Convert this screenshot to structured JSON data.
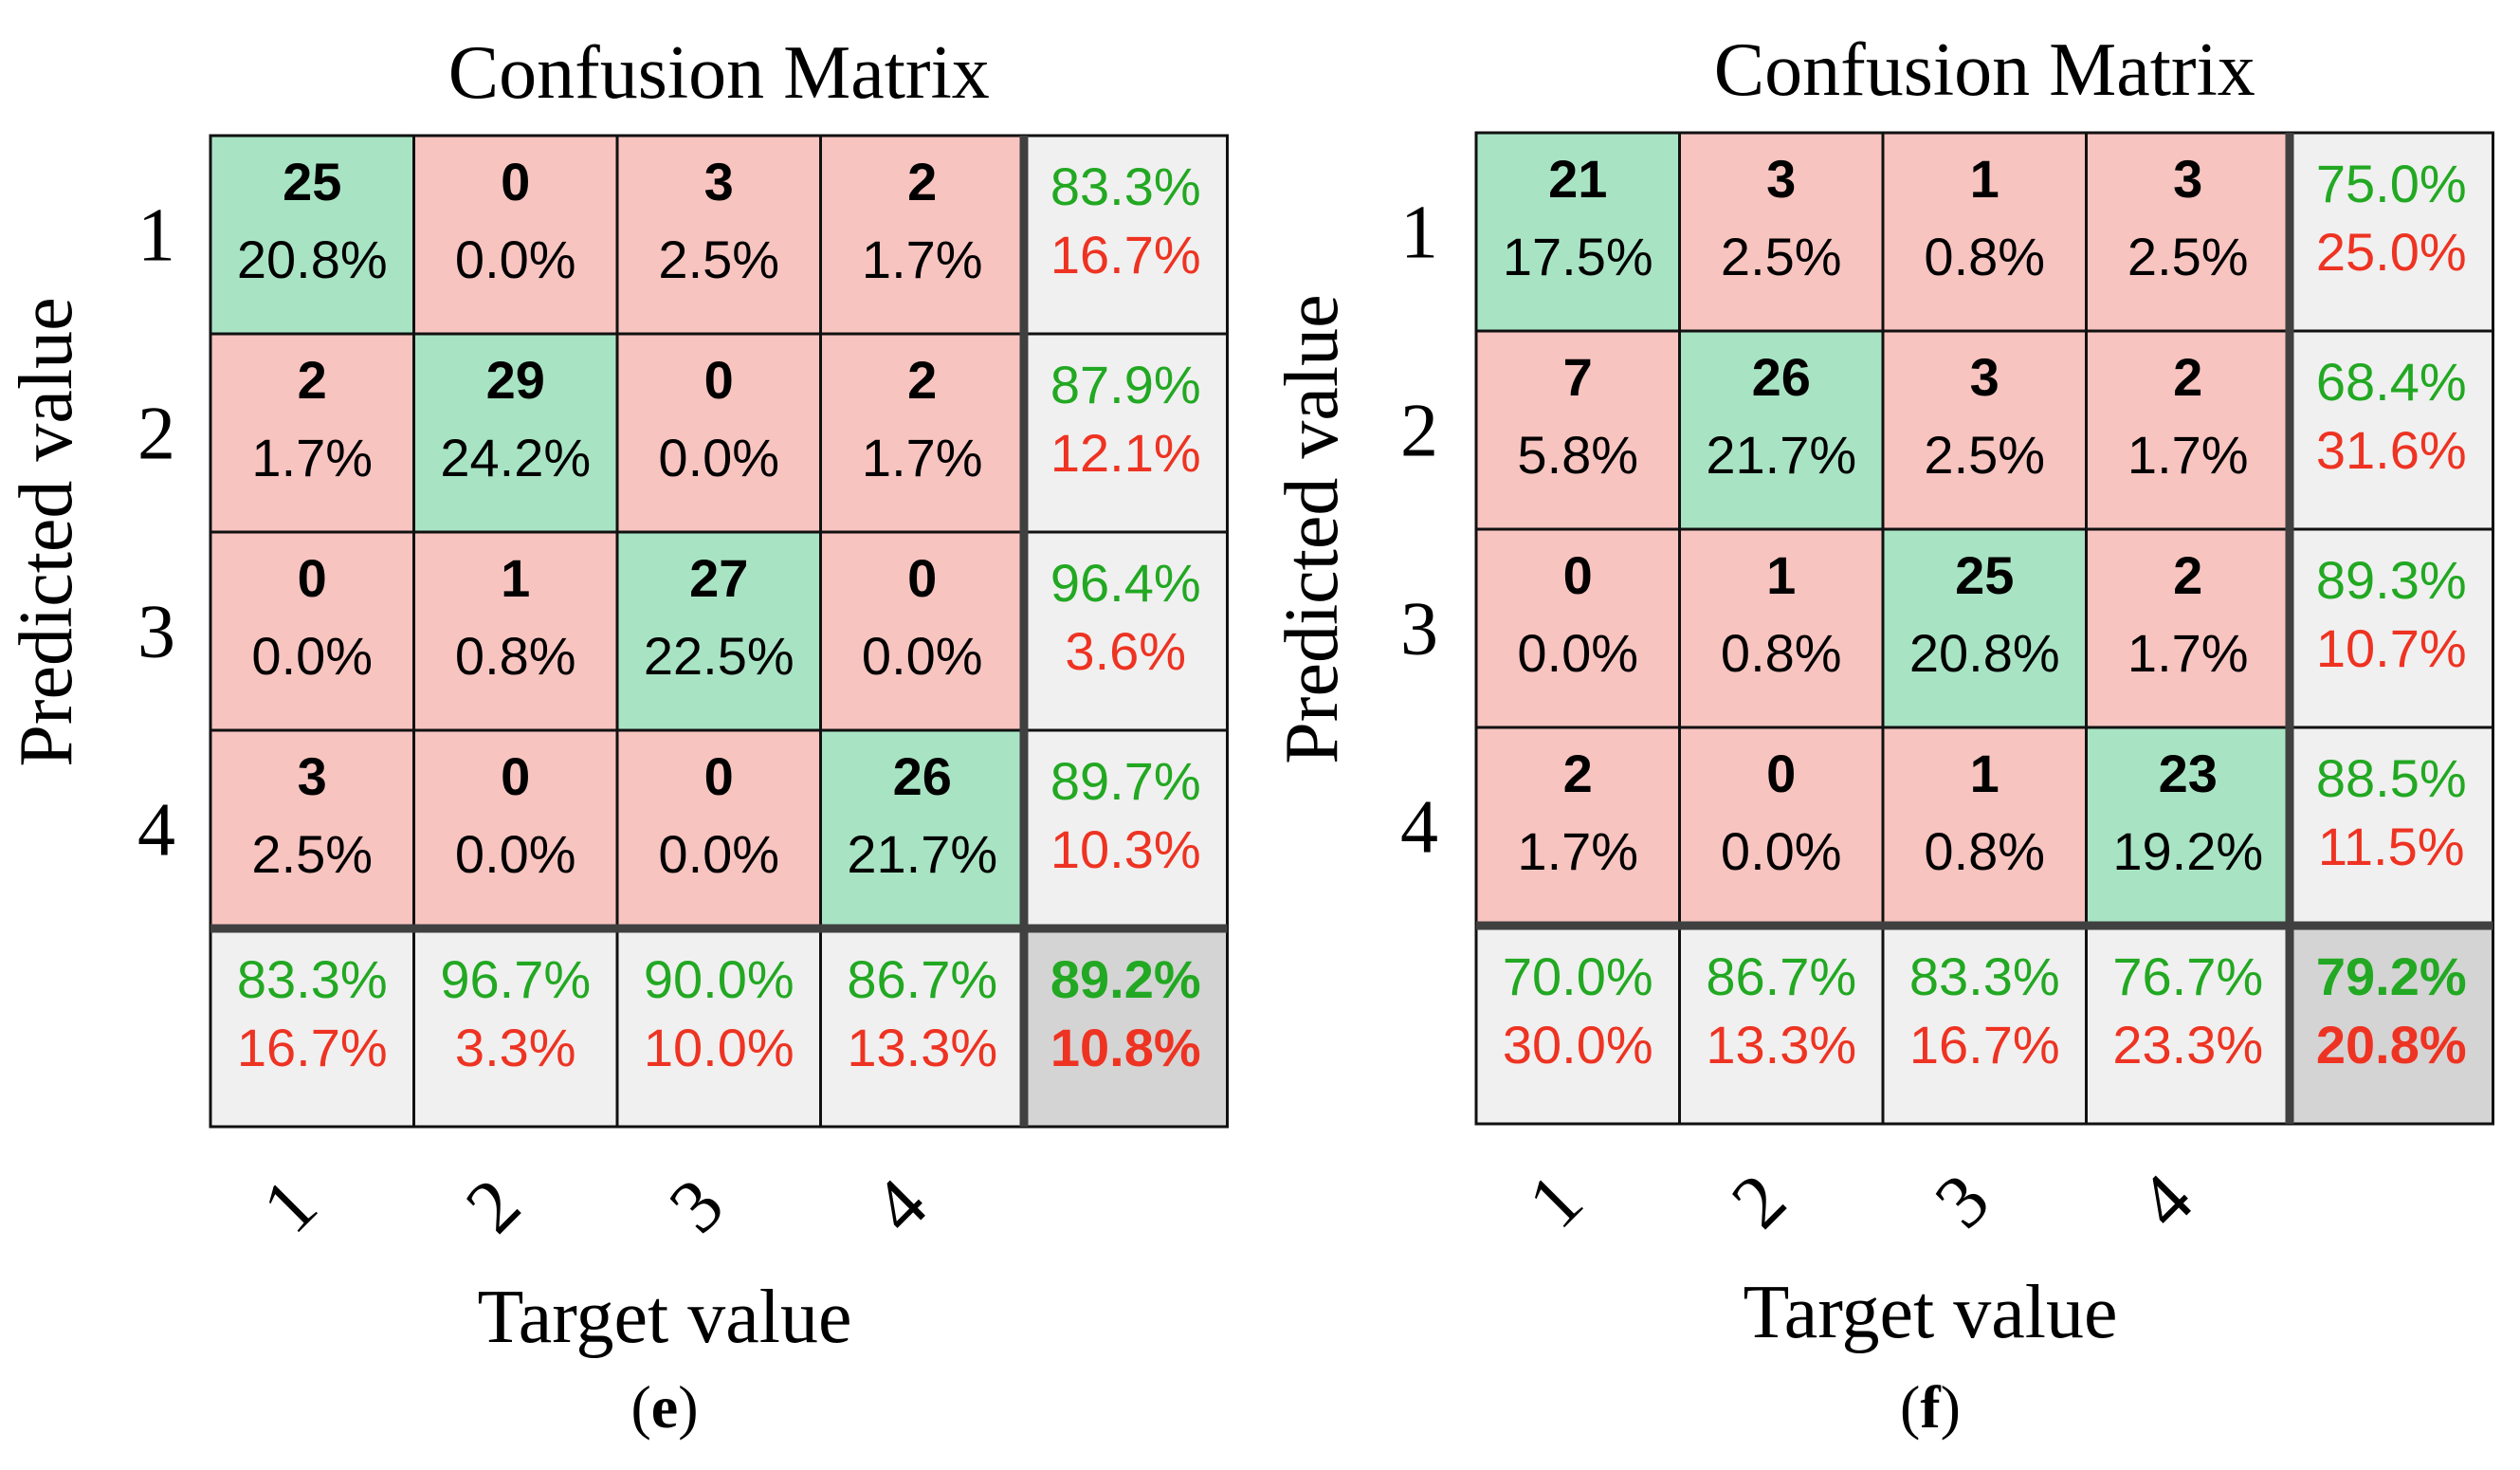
{
  "colors": {
    "diag_fill": "#a8e4c4",
    "off_fill": "#f8c4c0",
    "summary_fill": "#f0f0f0",
    "overall_fill": "#d4d4d4",
    "correct_text": "#22a822",
    "error_text": "#ee3322",
    "grid_line": "#111111",
    "separator_line": "#404040",
    "count_text": "#000000"
  },
  "chart_data": [
    {
      "type": "table",
      "panel_label": "(e)",
      "title": "Confusion Matrix",
      "xlabel": "Target value",
      "ylabel": "Predicted value",
      "row_labels": [
        "1",
        "2",
        "3",
        "4"
      ],
      "col_labels": [
        "1",
        "2",
        "3",
        "4"
      ],
      "counts": [
        [
          25,
          0,
          3,
          2
        ],
        [
          2,
          29,
          0,
          2
        ],
        [
          0,
          1,
          27,
          0
        ],
        [
          3,
          0,
          0,
          26
        ]
      ],
      "percents": [
        [
          "20.8%",
          "0.0%",
          "2.5%",
          "1.7%"
        ],
        [
          "1.7%",
          "24.2%",
          "0.0%",
          "1.7%"
        ],
        [
          "0.0%",
          "0.8%",
          "22.5%",
          "0.0%"
        ],
        [
          "2.5%",
          "0.0%",
          "0.0%",
          "21.7%"
        ]
      ],
      "row_summary": [
        {
          "correct": "83.3%",
          "error": "16.7%"
        },
        {
          "correct": "87.9%",
          "error": "12.1%"
        },
        {
          "correct": "96.4%",
          "error": "3.6%"
        },
        {
          "correct": "89.7%",
          "error": "10.3%"
        }
      ],
      "col_summary": [
        {
          "correct": "83.3%",
          "error": "16.7%"
        },
        {
          "correct": "96.7%",
          "error": "3.3%"
        },
        {
          "correct": "90.0%",
          "error": "10.0%"
        },
        {
          "correct": "86.7%",
          "error": "13.3%"
        }
      ],
      "overall": {
        "correct": "89.2%",
        "error": "10.8%"
      }
    },
    {
      "type": "table",
      "panel_label": "(f)",
      "title": "Confusion Matrix",
      "xlabel": "Target value",
      "ylabel": "Predicted value",
      "row_labels": [
        "1",
        "2",
        "3",
        "4"
      ],
      "col_labels": [
        "1",
        "2",
        "3",
        "4"
      ],
      "counts": [
        [
          21,
          3,
          1,
          3
        ],
        [
          7,
          26,
          3,
          2
        ],
        [
          0,
          1,
          25,
          2
        ],
        [
          2,
          0,
          1,
          23
        ]
      ],
      "percents": [
        [
          "17.5%",
          "2.5%",
          "0.8%",
          "2.5%"
        ],
        [
          "5.8%",
          "21.7%",
          "2.5%",
          "1.7%"
        ],
        [
          "0.0%",
          "0.8%",
          "20.8%",
          "1.7%"
        ],
        [
          "1.7%",
          "0.0%",
          "0.8%",
          "19.2%"
        ]
      ],
      "row_summary": [
        {
          "correct": "75.0%",
          "error": "25.0%"
        },
        {
          "correct": "68.4%",
          "error": "31.6%"
        },
        {
          "correct": "89.3%",
          "error": "10.7%"
        },
        {
          "correct": "88.5%",
          "error": "11.5%"
        }
      ],
      "col_summary": [
        {
          "correct": "70.0%",
          "error": "30.0%"
        },
        {
          "correct": "86.7%",
          "error": "13.3%"
        },
        {
          "correct": "83.3%",
          "error": "16.7%"
        },
        {
          "correct": "76.7%",
          "error": "23.3%"
        }
      ],
      "overall": {
        "correct": "79.2%",
        "error": "20.8%"
      }
    }
  ]
}
